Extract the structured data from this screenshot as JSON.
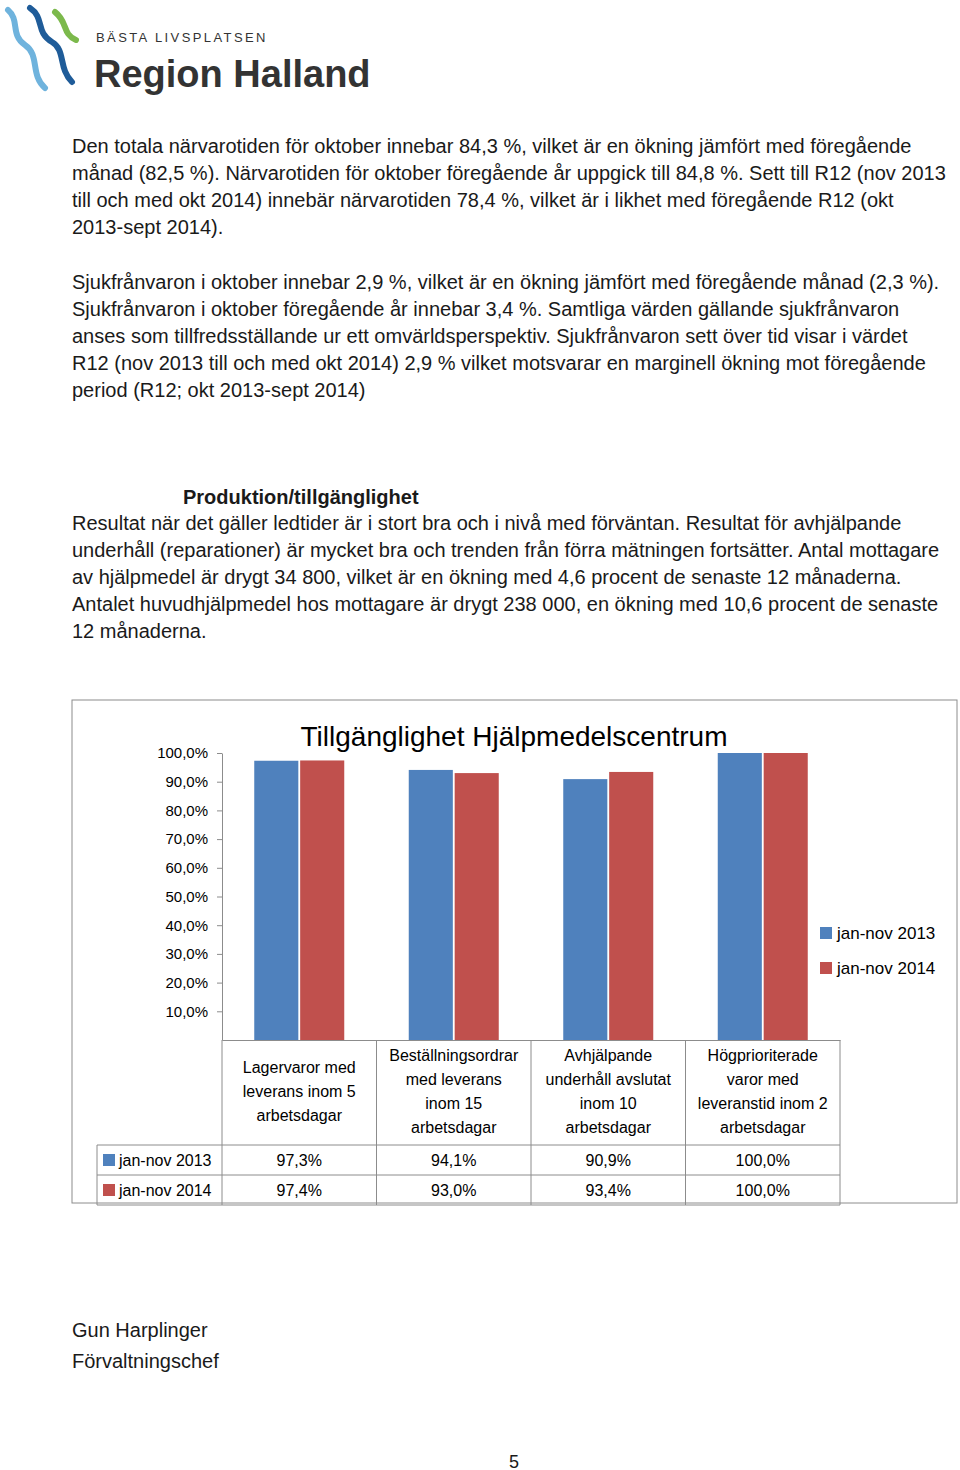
{
  "header": {
    "tagline": "BÄSTA LIVSPLATSEN",
    "name": "Region Halland"
  },
  "paragraphs": [
    "Den totala närvarotiden för oktober innebar 84,3 %, vilket är en ökning jämfört med föregående månad (82,5 %). Närvarotiden för oktober föregående år uppgick till 84,8 %. Sett till R12 (nov 2013 till och med okt 2014) innebär närvarotiden 78,4 %, vilket är i likhet med föregående R12 (okt 2013-sept 2014).",
    "Sjukfrånvaron i oktober innebar 2,9 %, vilket är en ökning jämfört med föregående månad (2,3 %). Sjukfrånvaron i oktober föregående år innebar 3,4 %. Samtliga värden gällande sjukfrånvaron anses som tillfredsställande ur ett omvärldsperspektiv. Sjukfrånvaron sett över tid visar i värdet R12 (nov 2013 till och med okt 2014) 2,9 % vilket motsvarar en marginell ökning mot föregående period (R12; okt 2013-sept 2014)"
  ],
  "section": {
    "heading": "Produktion/tillgänglighet",
    "text": "Resultat när det gäller ledtider är i stort bra och i nivå med förväntan. Resultat för avhjälpande underhåll (reparationer) är mycket bra och trenden från förra mätningen fortsätter. Antal mottagare av hjälpmedel är drygt 34 800, vilket är en ökning med 4,6 procent de senaste 12 månaderna. Antalet huvudhjälpmedel hos mottagare är drygt 238 000, en ökning med 10,6 procent de senaste 12 månaderna."
  },
  "chart_data": {
    "type": "bar",
    "title": "Tillgänglighet Hjälpmedelscentrum",
    "categories": [
      "Lagervaror med leverans inom 5 arbetsdagar",
      "Beställningsordrar med leverans inom 15 arbetsdagar",
      "Avhjälpande underhåll avslutat inom 10 arbetsdagar",
      "Högprioriterade varor med leveranstid inom 2 arbetsdagar"
    ],
    "series": [
      {
        "name": "jan-nov 2013",
        "color": "#4f81bd",
        "values": [
          97.3,
          94.1,
          90.9,
          100.0
        ],
        "value_labels": [
          "97,3%",
          "94,1%",
          "90,9%",
          "100,0%"
        ]
      },
      {
        "name": "jan-nov 2014",
        "color": "#c0504d",
        "values": [
          97.4,
          93.0,
          93.4,
          100.0
        ],
        "value_labels": [
          "97,4%",
          "93,0%",
          "93,4%",
          "100,0%"
        ]
      }
    ],
    "ylim": [
      0,
      100
    ],
    "yticks": [
      {
        "value": 10,
        "label": "10,0%"
      },
      {
        "value": 20,
        "label": "20,0%"
      },
      {
        "value": 30,
        "label": "30,0%"
      },
      {
        "value": 40,
        "label": "40,0%"
      },
      {
        "value": 50,
        "label": "50,0%"
      },
      {
        "value": 60,
        "label": "60,0%"
      },
      {
        "value": 70,
        "label": "70,0%"
      },
      {
        "value": 80,
        "label": "80,0%"
      },
      {
        "value": 90,
        "label": "90,0%"
      },
      {
        "value": 100,
        "label": "100,0%"
      }
    ],
    "grid": false,
    "legend": "right"
  },
  "signature": {
    "name": "Gun Harplinger",
    "title": "Förvaltningschef"
  },
  "page_number": 5
}
